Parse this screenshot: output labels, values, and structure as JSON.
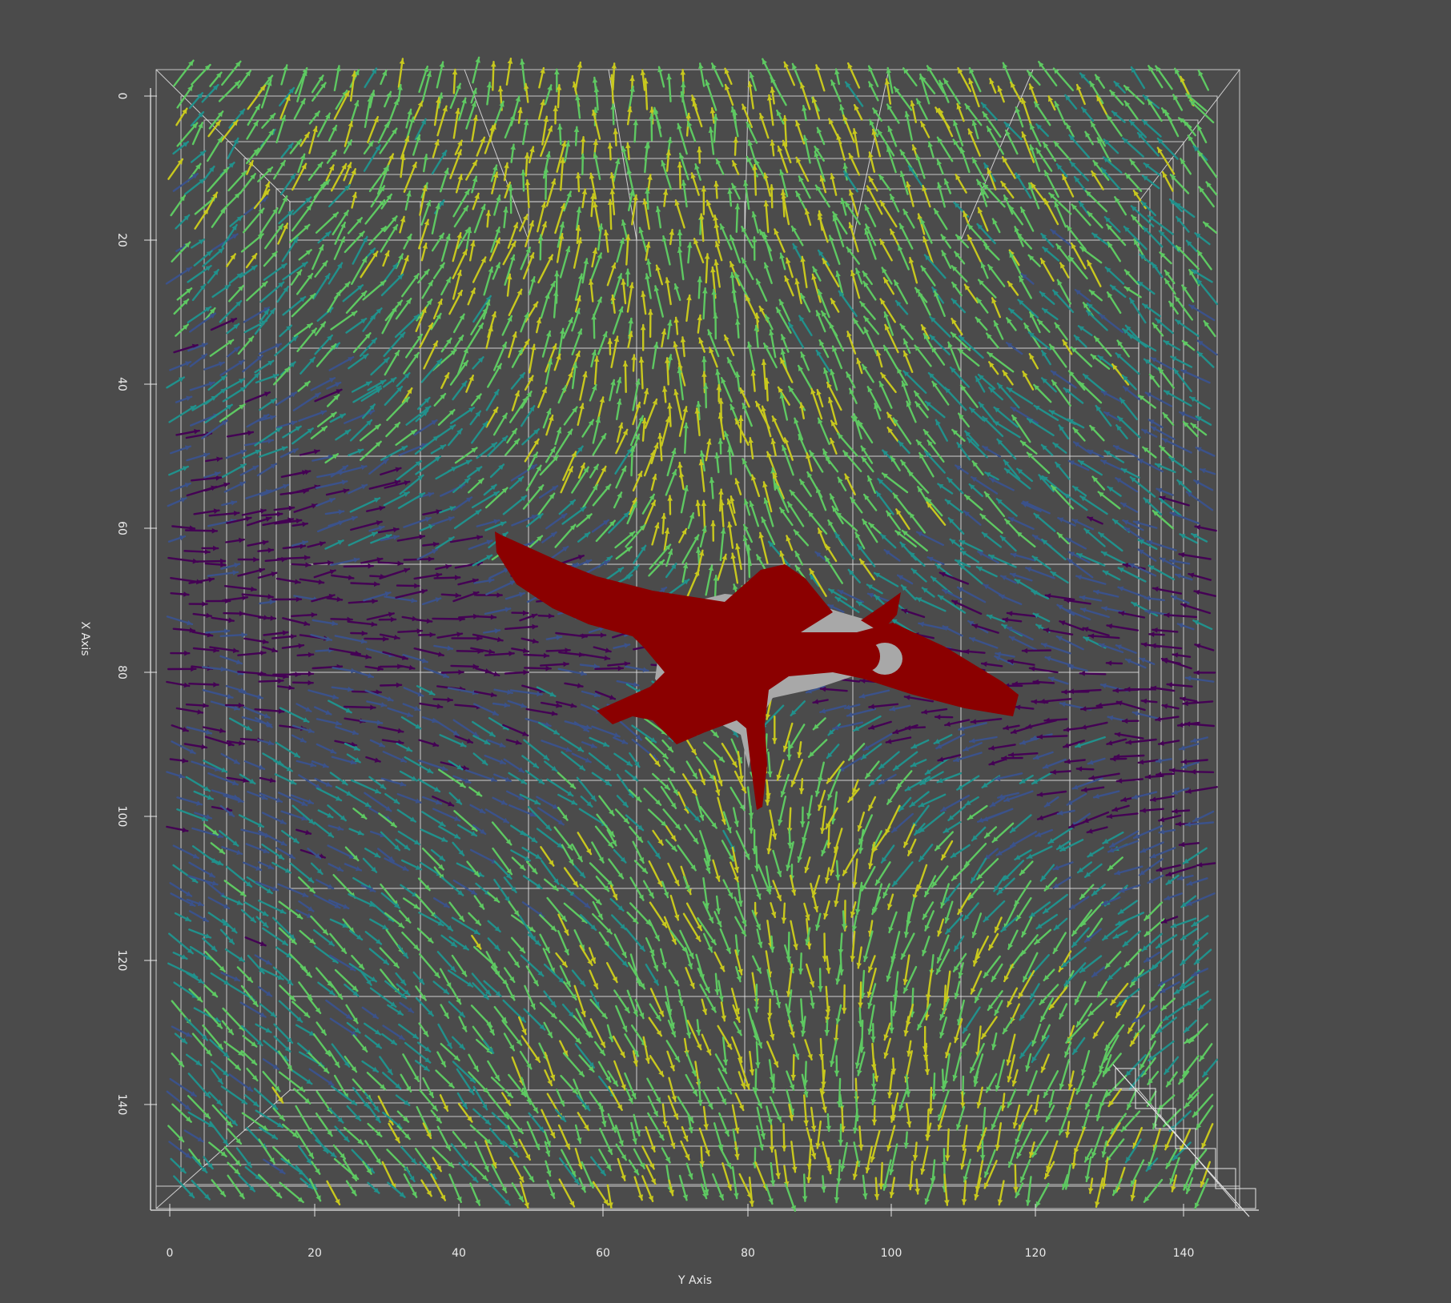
{
  "scene": {
    "background": "#4b4b4b",
    "grid_color": "#e6e6e6",
    "object_colors": {
      "body": "#8b0000",
      "shadow": "#a8a8a8"
    },
    "colormap": [
      "#440154",
      "#3b528b",
      "#21918c",
      "#5ec962",
      "#c8c81e"
    ]
  },
  "axes": {
    "x_axis_title": "X Axis",
    "y_axis_title": "Y Axis",
    "x_ticks": [
      "0",
      "20",
      "40",
      "60",
      "80",
      "100",
      "120",
      "140"
    ],
    "y_ticks": [
      "0",
      "20",
      "40",
      "60",
      "80",
      "100",
      "120",
      "140"
    ]
  }
}
